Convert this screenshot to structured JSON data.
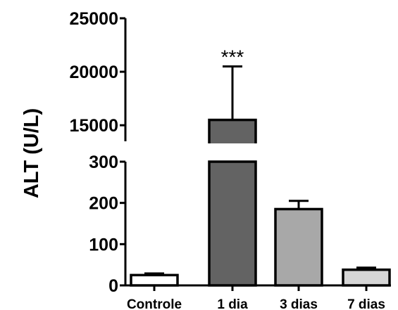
{
  "chart_data": {
    "type": "bar",
    "title": "",
    "xlabel": "",
    "ylabel": "ALT (U/L)",
    "categories": [
      "Controle",
      "1 dia",
      "3 dias",
      "7 dias"
    ],
    "values": [
      25,
      15500,
      185,
      38
    ],
    "errors": [
      4,
      5000,
      20,
      5
    ],
    "colors": [
      "#ffffff",
      "#636363",
      "#a8a8a8",
      "#d6d6d6"
    ],
    "significance": [
      "",
      "***",
      "",
      ""
    ],
    "y_axis_break": {
      "lower_segment_range": [
        0,
        300
      ],
      "upper_segment_range": [
        13500,
        25000
      ]
    },
    "yticks_lower": [
      0,
      100,
      200,
      300
    ],
    "yticks_upper": [
      15000,
      20000,
      25000
    ],
    "ytick_labels_lower": [
      "0",
      "100",
      "200",
      "300"
    ],
    "ytick_labels_upper": [
      "15000",
      "20000",
      "25000"
    ],
    "grid": false,
    "legend": "none"
  }
}
